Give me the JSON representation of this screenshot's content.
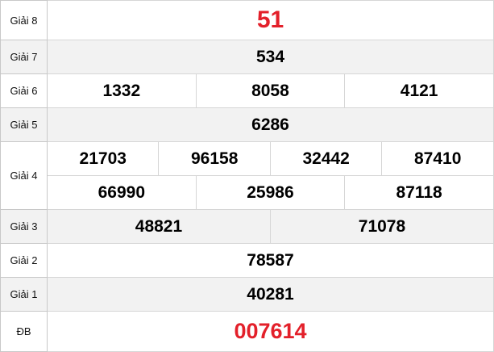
{
  "accent_color": "#e3202a",
  "rows": {
    "g8": {
      "label": "Giải 8",
      "values": [
        "51"
      ]
    },
    "g7": {
      "label": "Giải 7",
      "values": [
        "534"
      ]
    },
    "g6": {
      "label": "Giải 6",
      "values": [
        "1332",
        "8058",
        "4121"
      ]
    },
    "g5": {
      "label": "Giải 5",
      "values": [
        "6286"
      ]
    },
    "g4": {
      "label": "Giải 4",
      "values": [
        "21703",
        "96158",
        "32442",
        "87410",
        "66990",
        "25986",
        "87118"
      ]
    },
    "g3": {
      "label": "Giải 3",
      "values": [
        "48821",
        "71078"
      ]
    },
    "g2": {
      "label": "Giải 2",
      "values": [
        "78587"
      ]
    },
    "g1": {
      "label": "Giải 1",
      "values": [
        "40281"
      ]
    },
    "db": {
      "label": "ĐB",
      "values": [
        "007614"
      ]
    }
  }
}
